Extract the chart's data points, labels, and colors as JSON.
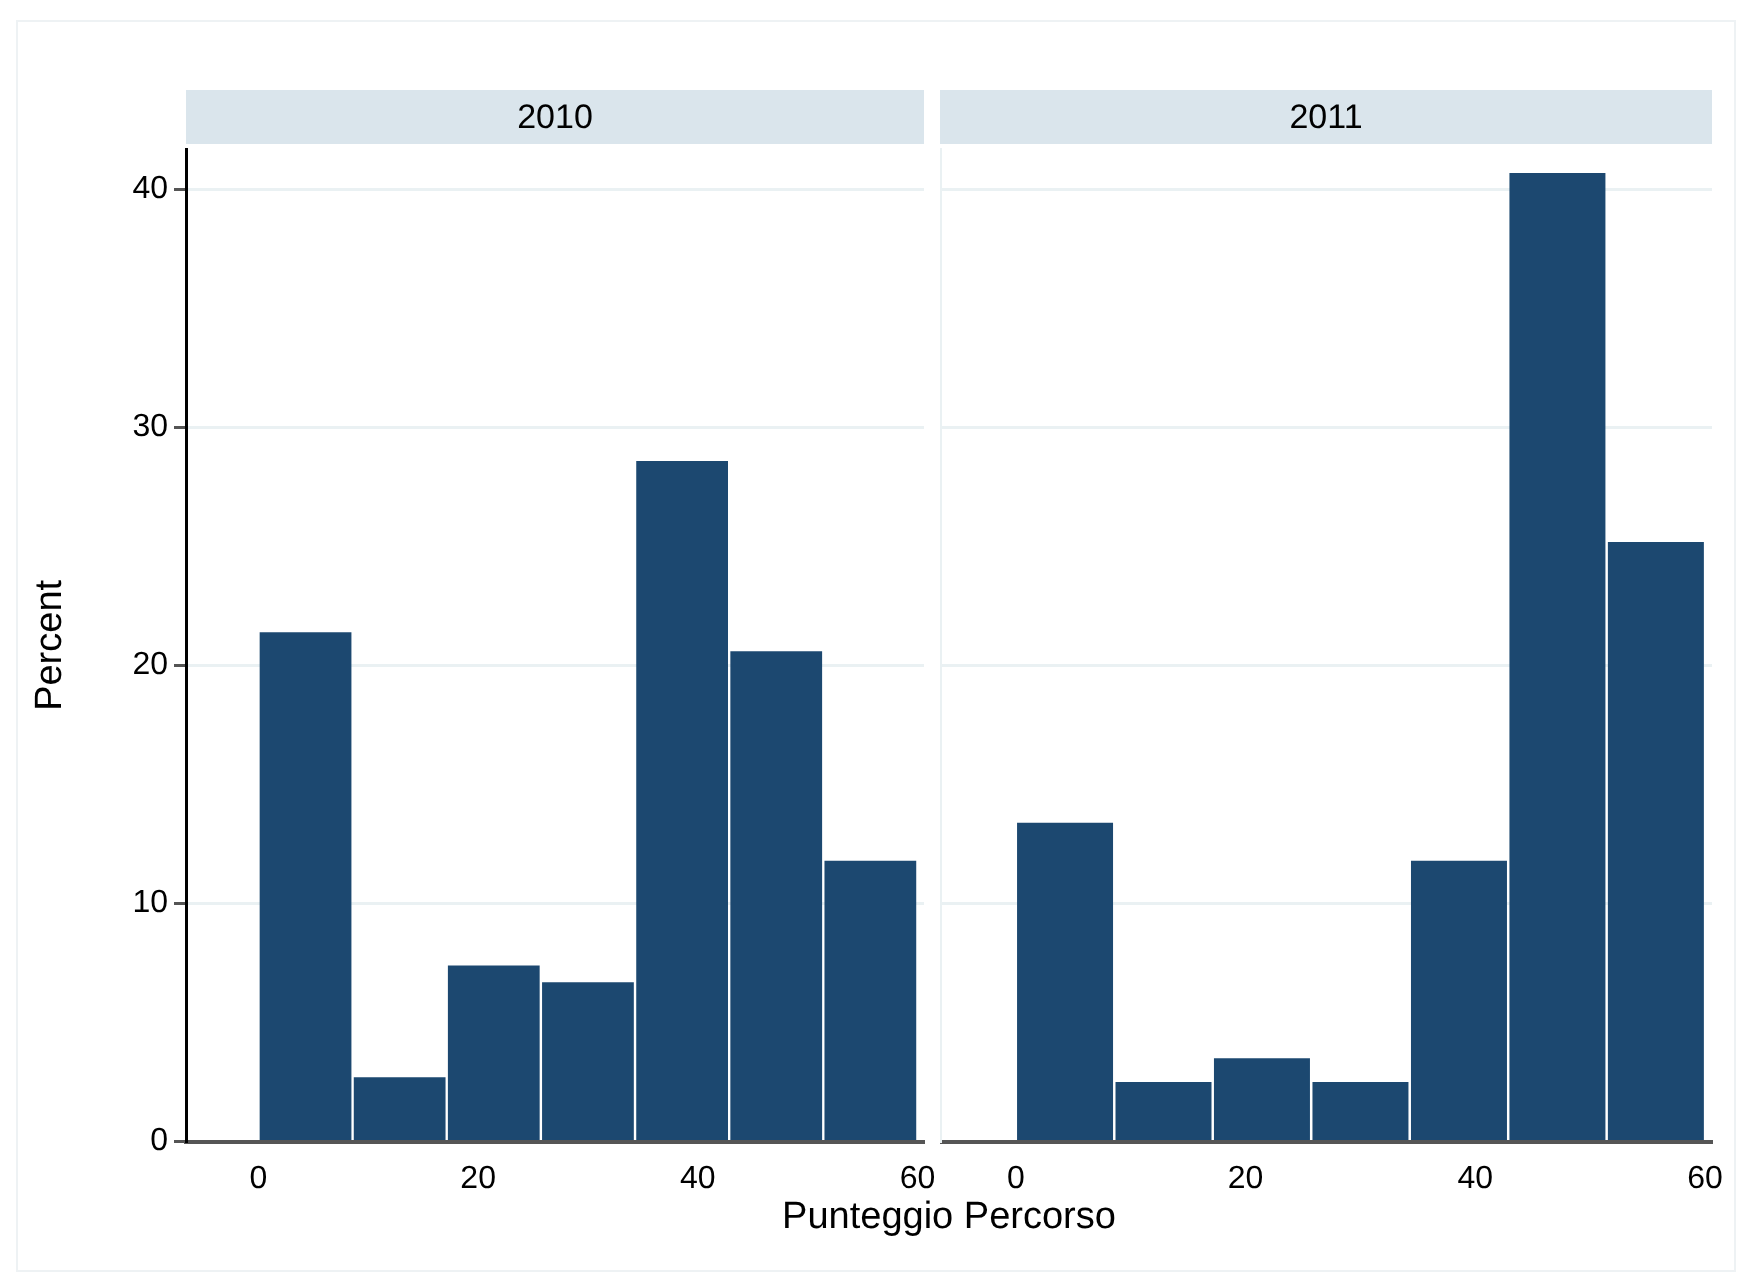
{
  "chart_data": [
    {
      "type": "histogram",
      "title": "2010",
      "xlabel": "Punteggio Percorso",
      "ylabel": "Percent",
      "color": "#1c4870",
      "bins": [
        0,
        8.57,
        17.14,
        25.71,
        34.29,
        42.86,
        51.43,
        60
      ],
      "values": [
        21.4,
        2.7,
        7.4,
        6.7,
        28.6,
        20.6,
        11.8
      ],
      "xlim": [
        -6.6,
        60.6
      ],
      "xticks": [
        0,
        20,
        40,
        60
      ],
      "ylim": [
        0,
        41.7
      ],
      "yticks": [
        0,
        10,
        20,
        30,
        40
      ],
      "grid": "y"
    },
    {
      "type": "histogram",
      "title": "2011",
      "color": "#1c4870",
      "bins": [
        0,
        8.57,
        17.14,
        25.71,
        34.29,
        42.86,
        51.43,
        60
      ],
      "values": [
        13.4,
        2.5,
        3.5,
        2.5,
        11.8,
        40.7,
        25.2
      ],
      "xlim": [
        -6.6,
        60.6
      ],
      "xticks": [
        0,
        20,
        40,
        60
      ],
      "ylim": [
        0,
        41.7
      ],
      "yticks": [
        0,
        10,
        20,
        30,
        40
      ],
      "grid": "y",
      "tick_labels": "x"
    }
  ]
}
